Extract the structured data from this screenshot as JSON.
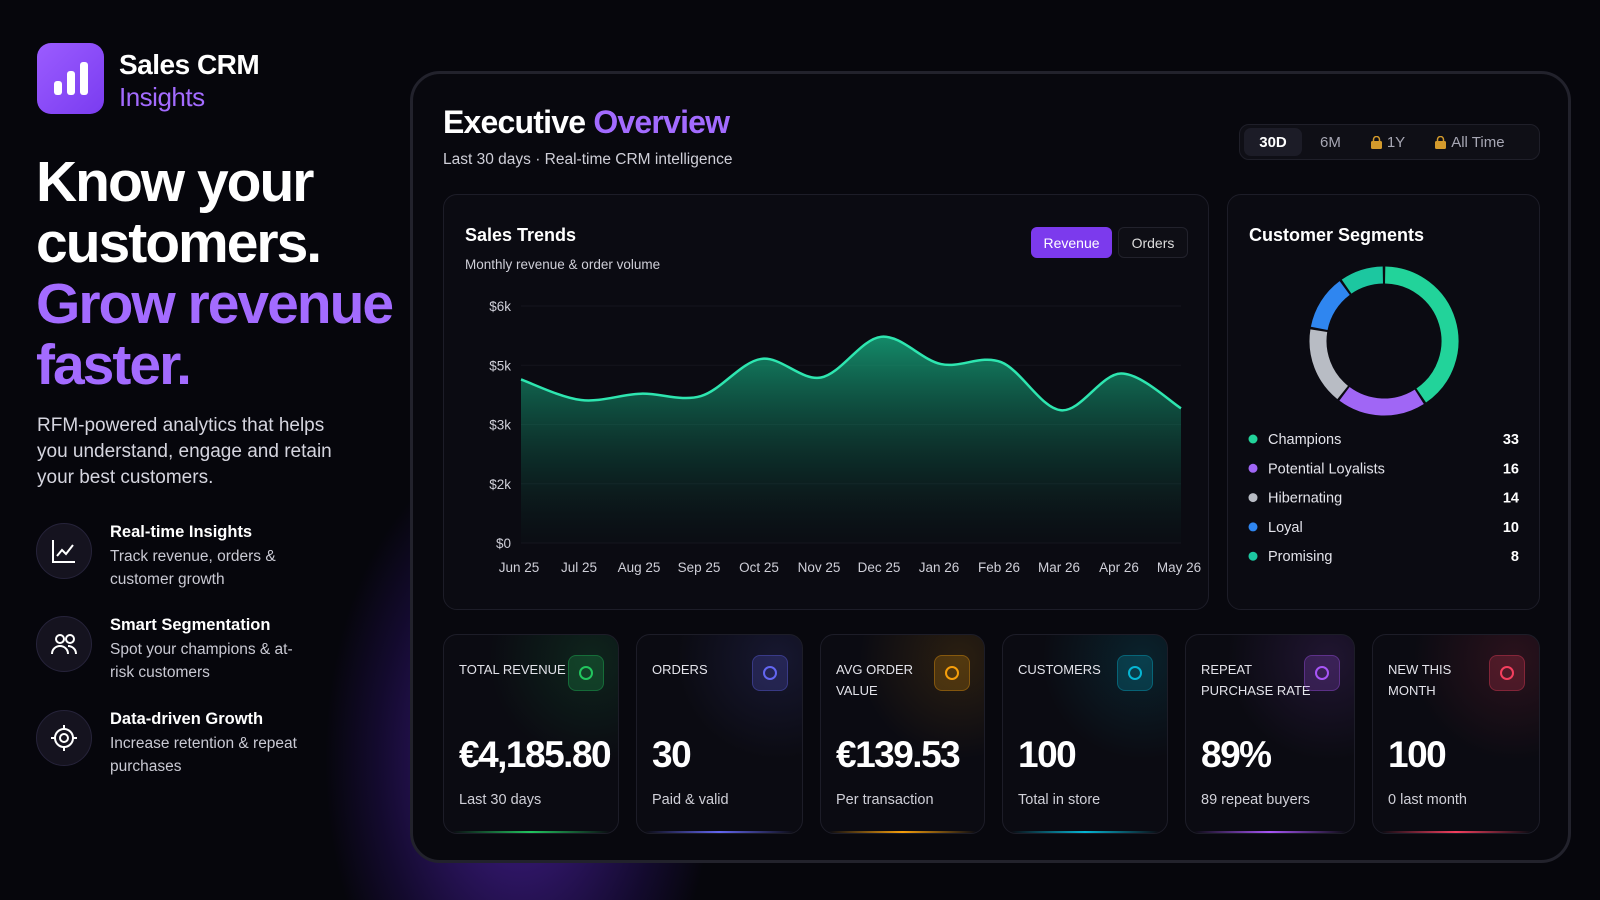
{
  "brand": {
    "name": "Sales CRM",
    "tagline": "Insights"
  },
  "hero": {
    "lines": [
      "Know your",
      "customers."
    ],
    "highlight_lines": [
      "Grow revenue",
      "faster."
    ],
    "description": "RFM-powered analytics that helps you understand, engage and retain your best customers."
  },
  "features": [
    {
      "title": "Real-time Insights",
      "text": "Track revenue, orders & customer growth"
    },
    {
      "title": "Smart Segmentation",
      "text": "Spot your champions & at-risk customers"
    },
    {
      "title": "Data-driven Growth",
      "text": "Increase retention & repeat purchases"
    }
  ],
  "dashboard": {
    "title": "Executive",
    "title_highlight": "Overview",
    "subtitle": "Last 30 days · Real-time CRM intelligence",
    "ranges": [
      "30D",
      "6M",
      "1Y",
      "All Time"
    ],
    "toggles": [
      "Revenue",
      "Orders"
    ]
  },
  "chart_data": [
    {
      "type": "area",
      "title": "Sales Trends",
      "subtitle": "Monthly revenue & order volume",
      "categories": [
        "Jun 25",
        "Jul 25",
        "Aug 25",
        "Sep 25",
        "Oct 25",
        "Nov 25",
        "Dec 25",
        "Jan 26",
        "Feb 26",
        "Mar 26",
        "Apr 26",
        "May 26"
      ],
      "values": [
        4140,
        3620,
        3780,
        3720,
        4660,
        4190,
        5220,
        4530,
        4580,
        3360,
        4290,
        3410
      ],
      "color": "#2ee6b0",
      "ylim": [
        0,
        6000
      ],
      "yticks": [
        {
          "value": 0,
          "label": "$0"
        },
        {
          "value": 1500,
          "label": "$2k"
        },
        {
          "value": 3000,
          "label": "$3k"
        },
        {
          "value": 4500,
          "label": "$5k"
        },
        {
          "value": 6000,
          "label": "$6k"
        }
      ],
      "grid": true
    },
    {
      "type": "donut",
      "title": "Customer Segments",
      "categories": [
        "Champions",
        "Potential Loyalists",
        "Hibernating",
        "Loyal",
        "Promising"
      ],
      "values": [
        33,
        16,
        14,
        10,
        8
      ],
      "colors": [
        "#22d39a",
        "#a066f5",
        "#b8bcc4",
        "#2f86f0",
        "#1cc7a0"
      ]
    }
  ],
  "kpis": [
    {
      "label": "TOTAL REVENUE",
      "value": "€4,185.80",
      "note": "Last 30 days",
      "color": "#22c55e"
    },
    {
      "label": "ORDERS",
      "value": "30",
      "note": "Paid & valid",
      "color": "#6366f1"
    },
    {
      "label": "AVG ORDER VALUE",
      "value": "€139.53",
      "note": "Per transaction",
      "color": "#f59e0b"
    },
    {
      "label": "CUSTOMERS",
      "value": "100",
      "note": "Total in store",
      "color": "#06b6d4"
    },
    {
      "label": "REPEAT PURCHASE RATE",
      "value": "89%",
      "note": "89 repeat buyers",
      "color": "#a855f7"
    },
    {
      "label": "NEW THIS MONTH",
      "value": "100",
      "note": "0 last month",
      "color": "#f43f5e"
    }
  ]
}
